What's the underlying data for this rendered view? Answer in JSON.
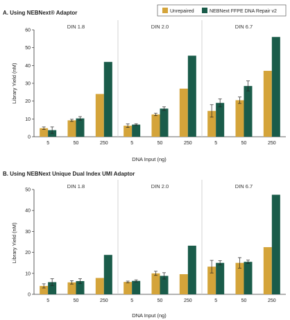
{
  "colors": {
    "unrepaired": "#D4A43A",
    "repaired": "#1A5C4A",
    "divider": "#C8C8C8",
    "axis": "#333333",
    "error": "#222222"
  },
  "legend": {
    "items": [
      {
        "label": "Unrepaired",
        "color": "#D4A43A"
      },
      {
        "label": "NEBNext FFPE DNA Repair v2",
        "color": "#1A5C4A"
      }
    ]
  },
  "chart_data": [
    {
      "type": "bar",
      "title": "A. Using NEBNext® Adaptor",
      "xlabel": "DNA Input (ng)",
      "ylabel": "Library Yield (nM)",
      "ylim": [
        0,
        60
      ],
      "yticks": [
        0,
        10,
        20,
        30,
        40,
        50,
        60
      ],
      "grid": false,
      "legend_position": "top-right",
      "categories": [
        "5",
        "50",
        "250"
      ],
      "groups": [
        {
          "label": "DIN 1.8",
          "series": [
            {
              "name": "Unrepaired",
              "values": [
                4.8,
                9.2,
                24.0
              ],
              "errors": [
                0.7,
                0.6,
                0
              ]
            },
            {
              "name": "NEBNext FFPE DNA Repair v2",
              "values": [
                3.7,
                10.3,
                42.0
              ],
              "errors": [
                1.8,
                1.0,
                0
              ]
            }
          ]
        },
        {
          "label": "DIN 2.0",
          "series": [
            {
              "name": "Unrepaired",
              "values": [
                6.2,
                12.5,
                27.0
              ],
              "errors": [
                1.0,
                0.7,
                0
              ]
            },
            {
              "name": "NEBNext FFPE DNA Repair v2",
              "values": [
                6.8,
                15.8,
                45.5
              ],
              "errors": [
                0.5,
                1.0,
                0
              ]
            }
          ]
        },
        {
          "label": "DIN 6.7",
          "series": [
            {
              "name": "Unrepaired",
              "values": [
                14.5,
                20.5,
                37.0
              ],
              "errors": [
                3.5,
                1.8,
                0
              ]
            },
            {
              "name": "NEBNext FFPE DNA Repair v2",
              "values": [
                19.0,
                28.5,
                56.0
              ],
              "errors": [
                2.2,
                2.8,
                0
              ]
            }
          ]
        }
      ]
    },
    {
      "type": "bar",
      "title": "B. Using NEBNext Unique Dual Index UMI Adaptor",
      "xlabel": "DNA Input (ng)",
      "ylabel": "Library Yield (nM)",
      "ylim": [
        0,
        50
      ],
      "yticks": [
        0,
        10,
        20,
        30,
        40,
        50
      ],
      "grid": false,
      "categories": [
        "5",
        "50",
        "250"
      ],
      "groups": [
        {
          "label": "DIN 1.8",
          "series": [
            {
              "name": "Unrepaired",
              "values": [
                4.0,
                5.7,
                7.8
              ],
              "errors": [
                1.0,
                0.8,
                0
              ]
            },
            {
              "name": "NEBNext FFPE DNA Repair v2",
              "values": [
                5.8,
                6.3,
                18.8
              ],
              "errors": [
                1.6,
                1.1,
                0
              ]
            }
          ]
        },
        {
          "label": "DIN 2.0",
          "series": [
            {
              "name": "Unrepaired",
              "values": [
                5.9,
                10.0,
                9.6
              ],
              "errors": [
                0.4,
                1.0,
                0
              ]
            },
            {
              "name": "NEBNext FFPE DNA Repair v2",
              "values": [
                6.4,
                8.8,
                23.2
              ],
              "errors": [
                0.5,
                1.5,
                0
              ]
            }
          ]
        },
        {
          "label": "DIN 6.7",
          "series": [
            {
              "name": "Unrepaired",
              "values": [
                13.2,
                15.0,
                22.5
              ],
              "errors": [
                3.0,
                2.5,
                0
              ]
            },
            {
              "name": "NEBNext FFPE DNA Repair v2",
              "values": [
                15.0,
                15.5,
                47.5
              ],
              "errors": [
                1.0,
                0.8,
                0
              ]
            }
          ]
        }
      ]
    }
  ]
}
